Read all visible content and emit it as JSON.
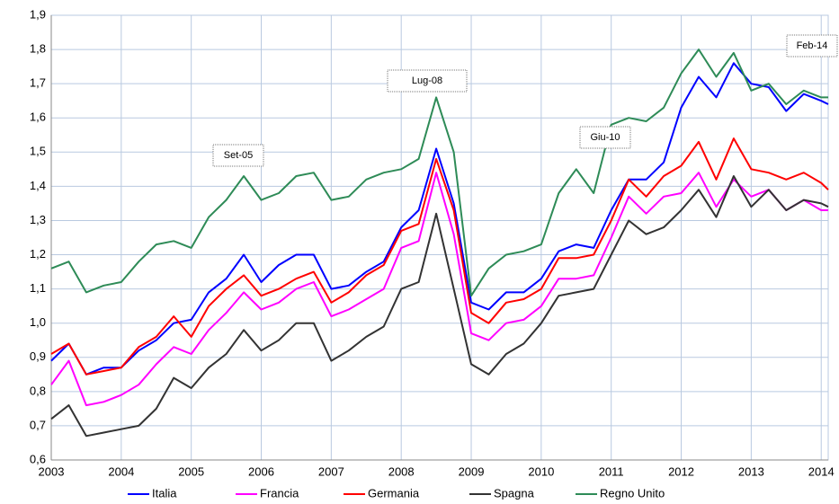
{
  "chart_data": {
    "type": "line",
    "x": [
      2003,
      2003.25,
      2003.5,
      2003.75,
      2004,
      2004.25,
      2004.5,
      2004.75,
      2005,
      2005.25,
      2005.5,
      2005.75,
      2006,
      2006.25,
      2006.5,
      2006.75,
      2007,
      2007.25,
      2007.5,
      2007.75,
      2008,
      2008.25,
      2008.5,
      2008.75,
      2009,
      2009.25,
      2009.5,
      2009.75,
      2010,
      2010.25,
      2010.5,
      2010.75,
      2011,
      2011.25,
      2011.5,
      2011.75,
      2012,
      2012.25,
      2012.5,
      2012.75,
      2013,
      2013.25,
      2013.5,
      2013.75,
      2014,
      2014.1
    ],
    "series": [
      {
        "name": "Italia",
        "color": "#0000ff",
        "values": [
          0.89,
          0.94,
          0.85,
          0.87,
          0.87,
          0.92,
          0.95,
          1.0,
          1.01,
          1.09,
          1.13,
          1.2,
          1.12,
          1.17,
          1.2,
          1.2,
          1.1,
          1.11,
          1.15,
          1.18,
          1.28,
          1.33,
          1.51,
          1.35,
          1.06,
          1.04,
          1.09,
          1.09,
          1.13,
          1.21,
          1.23,
          1.22,
          1.33,
          1.42,
          1.42,
          1.47,
          1.63,
          1.72,
          1.66,
          1.76,
          1.7,
          1.69,
          1.62,
          1.67,
          1.65,
          1.64
        ]
      },
      {
        "name": "Francia",
        "color": "#ff00ff",
        "values": [
          0.82,
          0.89,
          0.76,
          0.77,
          0.79,
          0.82,
          0.88,
          0.93,
          0.91,
          0.98,
          1.03,
          1.09,
          1.04,
          1.06,
          1.1,
          1.12,
          1.02,
          1.04,
          1.07,
          1.1,
          1.22,
          1.24,
          1.44,
          1.26,
          0.97,
          0.95,
          1.0,
          1.01,
          1.05,
          1.13,
          1.13,
          1.14,
          1.25,
          1.37,
          1.32,
          1.37,
          1.38,
          1.44,
          1.34,
          1.42,
          1.37,
          1.39,
          1.33,
          1.36,
          1.33,
          1.33
        ]
      },
      {
        "name": "Germania",
        "color": "#ff0000",
        "values": [
          0.91,
          0.94,
          0.85,
          0.86,
          0.87,
          0.93,
          0.96,
          1.02,
          0.96,
          1.05,
          1.1,
          1.14,
          1.08,
          1.1,
          1.13,
          1.15,
          1.06,
          1.09,
          1.14,
          1.17,
          1.27,
          1.29,
          1.48,
          1.33,
          1.03,
          1.0,
          1.06,
          1.07,
          1.1,
          1.19,
          1.19,
          1.2,
          1.3,
          1.42,
          1.37,
          1.43,
          1.46,
          1.53,
          1.42,
          1.54,
          1.45,
          1.44,
          1.42,
          1.44,
          1.41,
          1.39
        ]
      },
      {
        "name": "Spagna",
        "color": "#333333",
        "values": [
          0.72,
          0.76,
          0.67,
          0.68,
          0.69,
          0.7,
          0.75,
          0.84,
          0.81,
          0.87,
          0.91,
          0.98,
          0.92,
          0.95,
          1.0,
          1.0,
          0.89,
          0.92,
          0.96,
          0.99,
          1.1,
          1.12,
          1.32,
          1.1,
          0.88,
          0.85,
          0.91,
          0.94,
          1.0,
          1.08,
          1.09,
          1.1,
          1.2,
          1.3,
          1.26,
          1.28,
          1.33,
          1.39,
          1.31,
          1.43,
          1.34,
          1.39,
          1.33,
          1.36,
          1.35,
          1.34
        ]
      },
      {
        "name": "Regno Unito",
        "color": "#2e8b57",
        "values": [
          1.16,
          1.18,
          1.09,
          1.11,
          1.12,
          1.18,
          1.23,
          1.24,
          1.22,
          1.31,
          1.36,
          1.43,
          1.36,
          1.38,
          1.43,
          1.44,
          1.36,
          1.37,
          1.42,
          1.44,
          1.45,
          1.48,
          1.66,
          1.5,
          1.08,
          1.16,
          1.2,
          1.21,
          1.23,
          1.38,
          1.45,
          1.38,
          1.58,
          1.6,
          1.59,
          1.63,
          1.73,
          1.8,
          1.72,
          1.79,
          1.68,
          1.7,
          1.64,
          1.68,
          1.66,
          1.66
        ]
      }
    ],
    "xlim": [
      2003,
      2014.1
    ],
    "xticks": [
      2003,
      2004,
      2005,
      2006,
      2007,
      2008,
      2009,
      2010,
      2011,
      2012,
      2013,
      2014
    ],
    "ylim": [
      0.6,
      1.9
    ],
    "yticks": [
      {
        "value": 0.6,
        "label": "0,6"
      },
      {
        "value": 0.7,
        "label": "0,7"
      },
      {
        "value": 0.8,
        "label": "0,8"
      },
      {
        "value": 0.9,
        "label": "0,9"
      },
      {
        "value": 1.0,
        "label": "1,0"
      },
      {
        "value": 1.1,
        "label": "1,1"
      },
      {
        "value": 1.2,
        "label": "1,2"
      },
      {
        "value": 1.3,
        "label": "1,3"
      },
      {
        "value": 1.4,
        "label": "1,4"
      },
      {
        "value": 1.5,
        "label": "1,5"
      },
      {
        "value": 1.6,
        "label": "1,6"
      },
      {
        "value": 1.7,
        "label": "1,7"
      },
      {
        "value": 1.8,
        "label": "1,8"
      },
      {
        "value": 1.9,
        "label": "1,9"
      }
    ],
    "grid": true,
    "legend": "bottom",
    "annotations": [
      "Set-05",
      "Lug-08",
      "Giu-10",
      "Feb-14"
    ]
  }
}
